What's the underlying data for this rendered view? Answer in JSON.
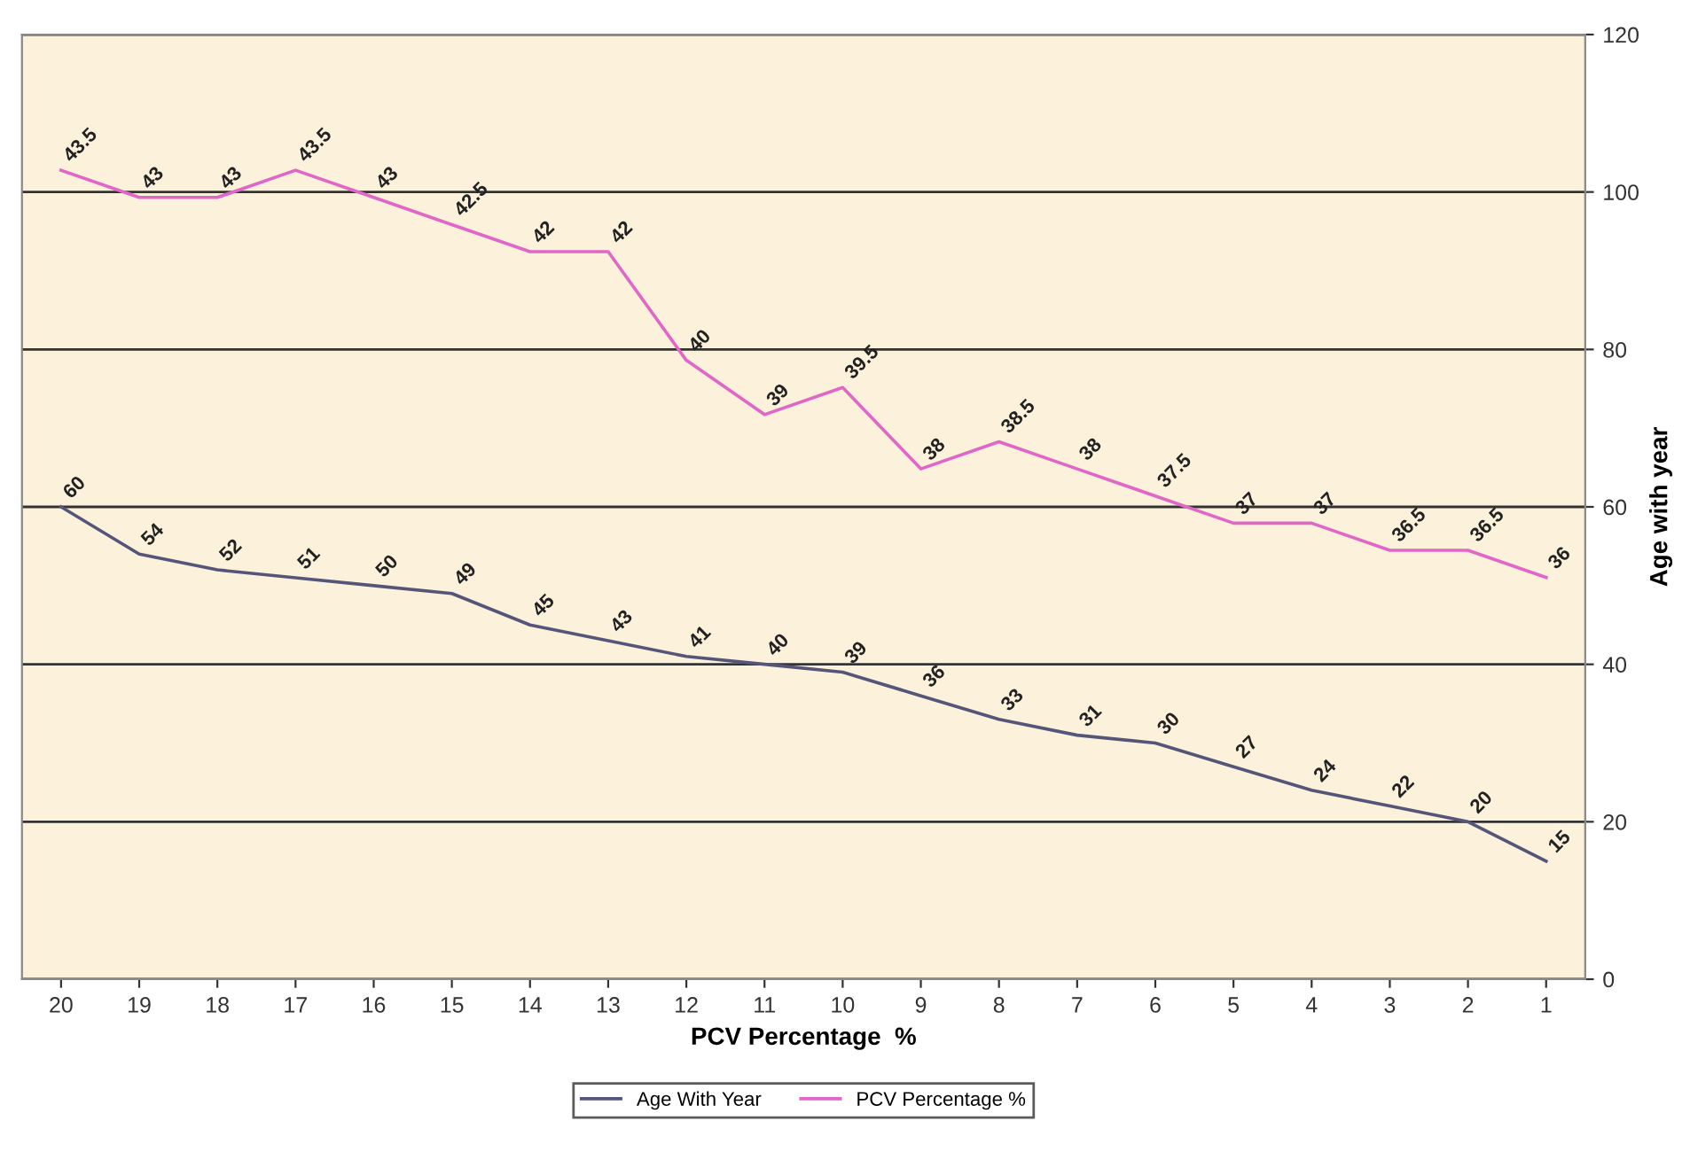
{
  "chart_data": {
    "type": "line",
    "xlabel": "PCV Percentage  %",
    "ylabel": "Age with year",
    "categories": [
      "20",
      "19",
      "18",
      "17",
      "16",
      "15",
      "14",
      "13",
      "12",
      "11",
      "10",
      "9",
      "8",
      "7",
      "6",
      "5",
      "4",
      "3",
      "2",
      "1"
    ],
    "series": [
      {
        "name": "Age With Year",
        "color": "#55557a",
        "values": [
          60,
          54,
          52,
          51,
          50,
          49,
          45,
          43,
          41,
          40,
          39,
          36,
          33,
          31,
          30,
          27,
          24,
          22,
          20,
          15
        ],
        "value_labels": [
          "60",
          "54",
          "52",
          "51",
          "50",
          "49",
          "45",
          "43",
          "41",
          "40",
          "39",
          "36",
          "33",
          "31",
          "30",
          "27",
          "24",
          "22",
          "20",
          "15"
        ]
      },
      {
        "name": "PCV Percentage %",
        "color": "#e066c8",
        "axis": "y2",
        "values": [
          43.5,
          43,
          43,
          43.5,
          43,
          42.5,
          42,
          42,
          40,
          39,
          39.5,
          38,
          38.5,
          38,
          37.5,
          37,
          37,
          36.5,
          36.5,
          36
        ],
        "value_labels": [
          "43.5",
          "43",
          "43",
          "43.5",
          "43",
          "42.5",
          "42",
          "42",
          "40",
          "39",
          "39.5",
          "38",
          "38.5",
          "38",
          "37.5",
          "37",
          "37",
          "36.5",
          "36.5",
          "36"
        ]
      }
    ],
    "y2lim": [
      28.6,
      46.0
    ],
    "ylim": [
      0,
      120
    ],
    "yticks": [
      0,
      20,
      40,
      60,
      80,
      100,
      120
    ],
    "grid": "y",
    "legend": "bottom",
    "marker": "none",
    "line_style": "solid"
  }
}
